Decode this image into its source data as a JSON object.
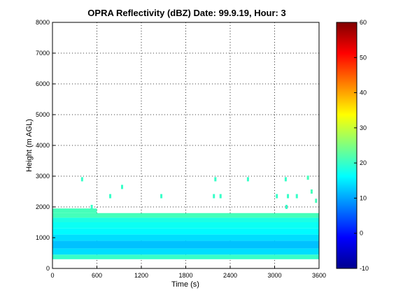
{
  "chart_data": {
    "type": "heatmap",
    "title": "OPRA Reflectivity (dBZ)  Date: 99.9.19, Hour: 3",
    "xlabel": "Time (s)",
    "ylabel": "Height (m AGL)",
    "xlim": [
      0,
      3600
    ],
    "ylim": [
      0,
      8000
    ],
    "xticks": [
      "0",
      "600",
      "1200",
      "1800",
      "2400",
      "3000",
      "3600"
    ],
    "yticks": [
      "0",
      "1000",
      "2000",
      "3000",
      "4000",
      "5000",
      "6000",
      "7000",
      "8000"
    ],
    "grid": true,
    "colorbar": {
      "range": [
        -10,
        60
      ],
      "ticks": [
        "-10",
        "0",
        "10",
        "20",
        "30",
        "40",
        "50",
        "60"
      ],
      "colormap": "jet",
      "position": "right"
    },
    "layers": [
      {
        "height_range": [
          300,
          450
        ],
        "dbz": 20,
        "time_range": [
          0,
          3600
        ]
      },
      {
        "height_range": [
          450,
          650
        ],
        "dbz": 14,
        "time_range": [
          0,
          3600
        ]
      },
      {
        "height_range": [
          650,
          900
        ],
        "dbz": 12,
        "time_range": [
          0,
          3600
        ]
      },
      {
        "height_range": [
          900,
          1100
        ],
        "dbz": 14,
        "time_range": [
          0,
          3600
        ]
      },
      {
        "height_range": [
          1100,
          1300
        ],
        "dbz": 16,
        "time_range": [
          0,
          3600
        ]
      },
      {
        "height_range": [
          1300,
          1500
        ],
        "dbz": 17,
        "time_range": [
          0,
          3600
        ]
      },
      {
        "height_range": [
          1500,
          1650
        ],
        "dbz": 18,
        "time_range": [
          0,
          3600
        ]
      },
      {
        "height_range": [
          1650,
          1800
        ],
        "dbz": 21,
        "time_range": [
          0,
          3600
        ]
      },
      {
        "height_range": [
          1800,
          1950
        ],
        "dbz": 21,
        "time_range": [
          0,
          600
        ]
      }
    ],
    "echoes": [
      {
        "time": 400,
        "height": 2900,
        "dbz": 20
      },
      {
        "time": 530,
        "height": 2000,
        "dbz": 20
      },
      {
        "time": 780,
        "height": 2350,
        "dbz": 20
      },
      {
        "time": 940,
        "height": 2650,
        "dbz": 20
      },
      {
        "time": 1470,
        "height": 2350,
        "dbz": 20
      },
      {
        "time": 2200,
        "height": 2900,
        "dbz": 20
      },
      {
        "time": 2180,
        "height": 2350,
        "dbz": 20
      },
      {
        "time": 2270,
        "height": 2350,
        "dbz": 20
      },
      {
        "time": 2640,
        "height": 2900,
        "dbz": 20
      },
      {
        "time": 3150,
        "height": 2900,
        "dbz": 20
      },
      {
        "time": 3030,
        "height": 2350,
        "dbz": 20
      },
      {
        "time": 3180,
        "height": 2350,
        "dbz": 20
      },
      {
        "time": 3300,
        "height": 2350,
        "dbz": 20
      },
      {
        "time": 3160,
        "height": 2000,
        "dbz": 20
      },
      {
        "time": 3450,
        "height": 2950,
        "dbz": 21
      },
      {
        "time": 3500,
        "height": 2500,
        "dbz": 21
      },
      {
        "time": 3560,
        "height": 2200,
        "dbz": 21
      }
    ]
  }
}
